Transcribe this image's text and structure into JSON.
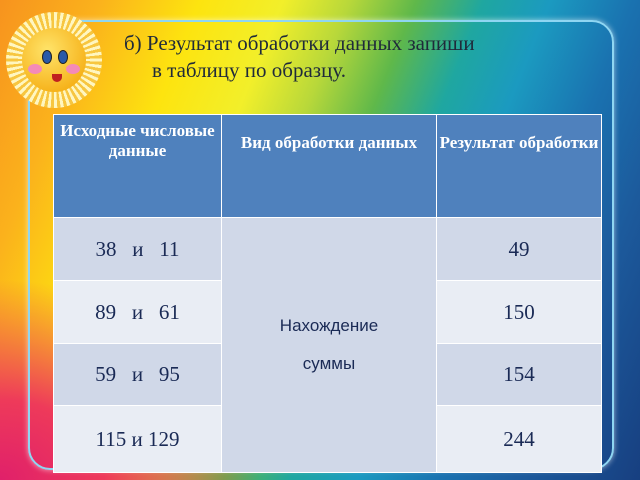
{
  "slide": {
    "title_line1": "б) Результат обработки данных запиши",
    "title_line2": "в таблицу по образцу.",
    "decoration_icon": "smiling-sun-icon"
  },
  "table": {
    "headers": [
      "Исходные числовые данные",
      "Вид обработки данных",
      "Результат обработки"
    ],
    "processing_type": "Нахождение суммы",
    "rows": [
      {
        "input": "38   и   11",
        "result": "49"
      },
      {
        "input": "89   и   61",
        "result": "150"
      },
      {
        "input": "59   и   95",
        "result": "154"
      },
      {
        "input": "115   и   129",
        "result": "244"
      }
    ]
  },
  "colors": {
    "header": "#4f81bd",
    "row_dark": "#d0d8e8",
    "row_light": "#e9edf4"
  }
}
